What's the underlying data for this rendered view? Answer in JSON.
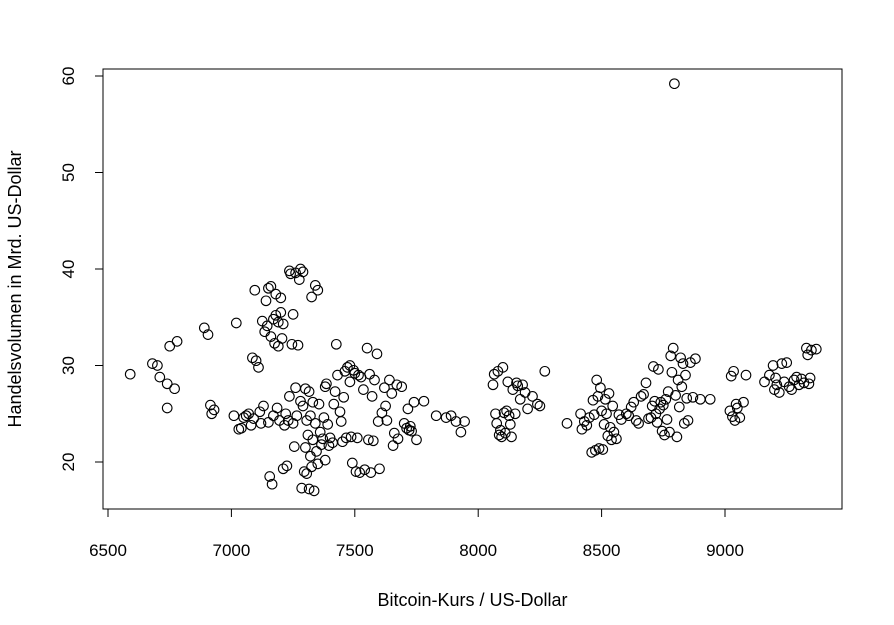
{
  "chart_data": {
    "type": "scatter",
    "title": "",
    "xlabel": "Bitcoin-Kurs / US-Dollar",
    "ylabel": "Handelsvolumen in Mrd. US-Dollar",
    "xlim": [
      6500,
      9400
    ],
    "ylim": [
      15,
      61
    ],
    "x_ticks": [
      6500,
      7000,
      7500,
      8000,
      8500,
      9000
    ],
    "y_ticks": [
      20,
      30,
      40,
      50,
      60
    ],
    "grid": false,
    "marker": "open-circle",
    "points": [
      [
        6590,
        29.1
      ],
      [
        6680,
        30.2
      ],
      [
        6700,
        30.0
      ],
      [
        6710,
        28.8
      ],
      [
        6740,
        28.1
      ],
      [
        6740,
        25.6
      ],
      [
        6750,
        32.0
      ],
      [
        6770,
        27.6
      ],
      [
        6780,
        32.5
      ],
      [
        6890,
        33.9
      ],
      [
        6905,
        33.2
      ],
      [
        6915,
        25.9
      ],
      [
        6920,
        25.0
      ],
      [
        6930,
        25.4
      ],
      [
        7010,
        24.8
      ],
      [
        7020,
        34.4
      ],
      [
        7030,
        23.4
      ],
      [
        7040,
        23.5
      ],
      [
        7050,
        24.6
      ],
      [
        7060,
        24.8
      ],
      [
        7070,
        25.0
      ],
      [
        7080,
        23.8
      ],
      [
        7085,
        30.8
      ],
      [
        7090,
        24.5
      ],
      [
        7095,
        37.8
      ],
      [
        7100,
        30.5
      ],
      [
        7110,
        29.8
      ],
      [
        7115,
        25.2
      ],
      [
        7120,
        24.0
      ],
      [
        7125,
        34.6
      ],
      [
        7130,
        25.8
      ],
      [
        7135,
        33.5
      ],
      [
        7140,
        36.7
      ],
      [
        7145,
        34.1
      ],
      [
        7150,
        38.0
      ],
      [
        7150,
        24.1
      ],
      [
        7155,
        18.5
      ],
      [
        7160,
        38.2
      ],
      [
        7160,
        33.0
      ],
      [
        7165,
        17.7
      ],
      [
        7170,
        34.8
      ],
      [
        7170,
        24.8
      ],
      [
        7175,
        32.3
      ],
      [
        7180,
        37.4
      ],
      [
        7180,
        35.2
      ],
      [
        7185,
        25.6
      ],
      [
        7190,
        32.0
      ],
      [
        7190,
        34.5
      ],
      [
        7195,
        24.3
      ],
      [
        7200,
        37.0
      ],
      [
        7200,
        35.5
      ],
      [
        7205,
        32.8
      ],
      [
        7210,
        34.3
      ],
      [
        7210,
        19.3
      ],
      [
        7215,
        23.8
      ],
      [
        7220,
        25.0
      ],
      [
        7225,
        19.6
      ],
      [
        7230,
        24.3
      ],
      [
        7235,
        39.8
      ],
      [
        7235,
        26.8
      ],
      [
        7240,
        39.5
      ],
      [
        7245,
        32.2
      ],
      [
        7250,
        35.3
      ],
      [
        7250,
        24.0
      ],
      [
        7255,
        21.6
      ],
      [
        7260,
        39.6
      ],
      [
        7260,
        27.7
      ],
      [
        7265,
        24.8
      ],
      [
        7270,
        32.1
      ],
      [
        7275,
        38.9
      ],
      [
        7280,
        40.0
      ],
      [
        7280,
        26.3
      ],
      [
        7285,
        17.3
      ],
      [
        7290,
        39.7
      ],
      [
        7290,
        25.8
      ],
      [
        7295,
        19.0
      ],
      [
        7300,
        27.6
      ],
      [
        7300,
        21.5
      ],
      [
        7305,
        24.3
      ],
      [
        7305,
        18.8
      ],
      [
        7310,
        22.8
      ],
      [
        7315,
        27.3
      ],
      [
        7315,
        17.2
      ],
      [
        7320,
        24.8
      ],
      [
        7320,
        20.6
      ],
      [
        7325,
        37.1
      ],
      [
        7325,
        19.5
      ],
      [
        7330,
        26.2
      ],
      [
        7330,
        22.3
      ],
      [
        7335,
        17.0
      ],
      [
        7340,
        38.3
      ],
      [
        7340,
        24.0
      ],
      [
        7345,
        21.1
      ],
      [
        7350,
        37.8
      ],
      [
        7350,
        19.8
      ],
      [
        7355,
        26.0
      ],
      [
        7360,
        23.1
      ],
      [
        7365,
        21.8
      ],
      [
        7370,
        22.4
      ],
      [
        7375,
        24.6
      ],
      [
        7380,
        27.8
      ],
      [
        7380,
        20.2
      ],
      [
        7385,
        28.1
      ],
      [
        7390,
        23.9
      ],
      [
        7395,
        21.7
      ],
      [
        7400,
        22.5
      ],
      [
        7410,
        22.0
      ],
      [
        7415,
        26.0
      ],
      [
        7420,
        27.3
      ],
      [
        7425,
        32.2
      ],
      [
        7430,
        29.0
      ],
      [
        7440,
        25.2
      ],
      [
        7445,
        24.2
      ],
      [
        7450,
        22.1
      ],
      [
        7455,
        26.7
      ],
      [
        7460,
        29.4
      ],
      [
        7465,
        22.5
      ],
      [
        7470,
        29.8
      ],
      [
        7480,
        30.0
      ],
      [
        7480,
        28.3
      ],
      [
        7485,
        22.6
      ],
      [
        7490,
        19.9
      ],
      [
        7495,
        29.5
      ],
      [
        7500,
        29.2
      ],
      [
        7505,
        19.0
      ],
      [
        7510,
        22.5
      ],
      [
        7515,
        29.0
      ],
      [
        7520,
        18.9
      ],
      [
        7525,
        28.8
      ],
      [
        7535,
        27.5
      ],
      [
        7540,
        19.2
      ],
      [
        7550,
        31.8
      ],
      [
        7555,
        22.3
      ],
      [
        7560,
        29.1
      ],
      [
        7565,
        18.9
      ],
      [
        7570,
        26.8
      ],
      [
        7575,
        22.2
      ],
      [
        7580,
        28.5
      ],
      [
        7590,
        31.2
      ],
      [
        7595,
        24.2
      ],
      [
        7600,
        19.3
      ],
      [
        7610,
        25.1
      ],
      [
        7620,
        27.7
      ],
      [
        7625,
        25.8
      ],
      [
        7630,
        24.3
      ],
      [
        7640,
        28.5
      ],
      [
        7650,
        27.1
      ],
      [
        7655,
        21.7
      ],
      [
        7660,
        23.0
      ],
      [
        7670,
        28.0
      ],
      [
        7675,
        22.4
      ],
      [
        7690,
        27.8
      ],
      [
        7700,
        24.0
      ],
      [
        7710,
        23.5
      ],
      [
        7715,
        25.5
      ],
      [
        7720,
        23.3
      ],
      [
        7725,
        23.7
      ],
      [
        7730,
        23.2
      ],
      [
        7740,
        26.2
      ],
      [
        7750,
        22.3
      ],
      [
        7780,
        26.3
      ],
      [
        7830,
        24.8
      ],
      [
        7870,
        24.6
      ],
      [
        7890,
        24.8
      ],
      [
        7910,
        24.2
      ],
      [
        7930,
        23.1
      ],
      [
        7945,
        24.2
      ],
      [
        8060,
        28.0
      ],
      [
        8065,
        29.1
      ],
      [
        8070,
        25.0
      ],
      [
        8075,
        24.0
      ],
      [
        8080,
        29.4
      ],
      [
        8085,
        22.8
      ],
      [
        8090,
        23.3
      ],
      [
        8095,
        22.6
      ],
      [
        8100,
        29.8
      ],
      [
        8105,
        25.1
      ],
      [
        8110,
        23.0
      ],
      [
        8115,
        25.3
      ],
      [
        8120,
        28.3
      ],
      [
        8125,
        24.8
      ],
      [
        8130,
        23.9
      ],
      [
        8135,
        22.6
      ],
      [
        8140,
        27.5
      ],
      [
        8150,
        25.0
      ],
      [
        8155,
        28.2
      ],
      [
        8160,
        27.9
      ],
      [
        8170,
        26.5
      ],
      [
        8180,
        28.0
      ],
      [
        8190,
        27.2
      ],
      [
        8200,
        25.5
      ],
      [
        8220,
        26.8
      ],
      [
        8240,
        26.0
      ],
      [
        8250,
        25.8
      ],
      [
        8270,
        29.4
      ],
      [
        8360,
        24.0
      ],
      [
        8415,
        25.0
      ],
      [
        8420,
        23.4
      ],
      [
        8430,
        24.2
      ],
      [
        8440,
        23.8
      ],
      [
        8450,
        24.6
      ],
      [
        8460,
        21.0
      ],
      [
        8465,
        26.4
      ],
      [
        8470,
        24.9
      ],
      [
        8475,
        21.2
      ],
      [
        8480,
        28.5
      ],
      [
        8485,
        26.8
      ],
      [
        8490,
        21.4
      ],
      [
        8495,
        27.7
      ],
      [
        8500,
        25.3
      ],
      [
        8505,
        21.3
      ],
      [
        8510,
        23.9
      ],
      [
        8515,
        26.5
      ],
      [
        8520,
        25.0
      ],
      [
        8525,
        22.7
      ],
      [
        8530,
        27.1
      ],
      [
        8535,
        23.6
      ],
      [
        8540,
        22.3
      ],
      [
        8545,
        25.8
      ],
      [
        8550,
        23.1
      ],
      [
        8560,
        22.4
      ],
      [
        8570,
        24.9
      ],
      [
        8580,
        24.4
      ],
      [
        8600,
        25.0
      ],
      [
        8610,
        24.8
      ],
      [
        8620,
        25.7
      ],
      [
        8630,
        26.2
      ],
      [
        8640,
        24.3
      ],
      [
        8650,
        24.0
      ],
      [
        8660,
        26.8
      ],
      [
        8670,
        27.0
      ],
      [
        8680,
        28.2
      ],
      [
        8690,
        24.5
      ],
      [
        8700,
        24.6
      ],
      [
        8705,
        25.8
      ],
      [
        8710,
        29.9
      ],
      [
        8715,
        26.3
      ],
      [
        8720,
        25.0
      ],
      [
        8725,
        24.1
      ],
      [
        8730,
        29.6
      ],
      [
        8735,
        25.5
      ],
      [
        8740,
        26.2
      ],
      [
        8745,
        23.2
      ],
      [
        8750,
        25.9
      ],
      [
        8755,
        22.8
      ],
      [
        8760,
        26.5
      ],
      [
        8765,
        24.4
      ],
      [
        8770,
        27.3
      ],
      [
        8775,
        23.1
      ],
      [
        8780,
        31.0
      ],
      [
        8785,
        29.3
      ],
      [
        8790,
        31.8
      ],
      [
        8795,
        59.2
      ],
      [
        8800,
        26.9
      ],
      [
        8805,
        22.6
      ],
      [
        8810,
        28.5
      ],
      [
        8815,
        25.7
      ],
      [
        8820,
        30.8
      ],
      [
        8825,
        27.8
      ],
      [
        8830,
        30.2
      ],
      [
        8835,
        24.0
      ],
      [
        8840,
        29.0
      ],
      [
        8845,
        26.6
      ],
      [
        8850,
        24.3
      ],
      [
        8860,
        30.3
      ],
      [
        8870,
        26.7
      ],
      [
        8880,
        30.7
      ],
      [
        8900,
        26.5
      ],
      [
        8940,
        26.5
      ],
      [
        9020,
        25.3
      ],
      [
        9025,
        28.9
      ],
      [
        9030,
        24.7
      ],
      [
        9035,
        29.4
      ],
      [
        9040,
        24.3
      ],
      [
        9045,
        26.0
      ],
      [
        9050,
        25.6
      ],
      [
        9060,
        24.6
      ],
      [
        9075,
        26.2
      ],
      [
        9085,
        29.0
      ],
      [
        9160,
        28.3
      ],
      [
        9180,
        29.0
      ],
      [
        9195,
        30.0
      ],
      [
        9200,
        27.5
      ],
      [
        9205,
        28.7
      ],
      [
        9210,
        28.0
      ],
      [
        9220,
        27.2
      ],
      [
        9230,
        30.2
      ],
      [
        9240,
        28.3
      ],
      [
        9250,
        30.3
      ],
      [
        9260,
        27.8
      ],
      [
        9270,
        27.5
      ],
      [
        9280,
        28.5
      ],
      [
        9290,
        28.8
      ],
      [
        9300,
        28.0
      ],
      [
        9310,
        28.6
      ],
      [
        9320,
        28.2
      ],
      [
        9330,
        31.8
      ],
      [
        9335,
        31.1
      ],
      [
        9340,
        28.1
      ],
      [
        9345,
        28.7
      ],
      [
        9350,
        31.6
      ],
      [
        9370,
        31.7
      ]
    ]
  }
}
